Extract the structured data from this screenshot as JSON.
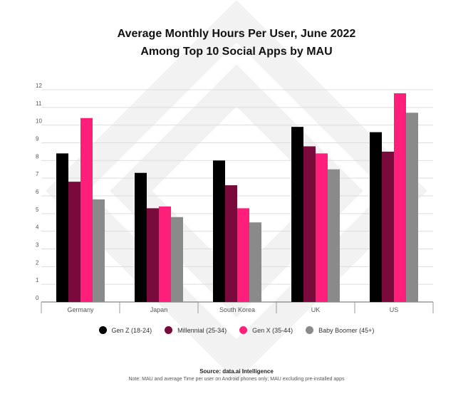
{
  "chart_data": {
    "type": "bar",
    "title": "Average Monthly Hours Per User, June 2022",
    "subtitle": "Among Top 10 Social Apps by MAU",
    "categories": [
      "Germany",
      "Japan",
      "South Korea",
      "UK",
      "US"
    ],
    "series": [
      {
        "name": "Gen Z (18-24)",
        "color": "#000000",
        "values": [
          8.4,
          7.3,
          8.0,
          9.9,
          9.6
        ]
      },
      {
        "name": "Millennial (25-34)",
        "color": "#7a0a3c",
        "values": [
          6.8,
          5.3,
          6.6,
          8.8,
          8.5
        ]
      },
      {
        "name": "Gen X (35-44)",
        "color": "#ff1f7a",
        "values": [
          10.4,
          5.4,
          5.3,
          8.4,
          11.8
        ]
      },
      {
        "name": "Baby Boomer (45+)",
        "color": "#8a8a8a",
        "values": [
          5.8,
          4.8,
          4.5,
          7.5,
          10.7
        ]
      }
    ],
    "ylim": [
      0,
      12
    ],
    "yticks": [
      0,
      1,
      2,
      3,
      4,
      5,
      6,
      7,
      8,
      9,
      10,
      11,
      12
    ],
    "grid": true,
    "legend": "bottom"
  },
  "source": "Source: data.ai Intelligence",
  "note": "Note: MAU and average Time per user on Android phones only; MAU excluding pre-installed apps"
}
